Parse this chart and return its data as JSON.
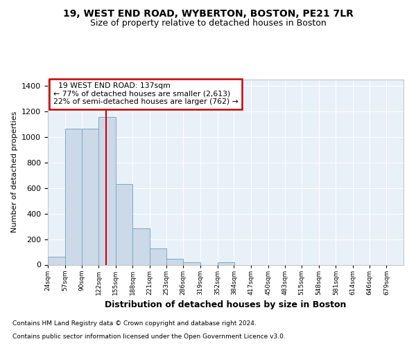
{
  "title1": "19, WEST END ROAD, WYBERTON, BOSTON, PE21 7LR",
  "title2": "Size of property relative to detached houses in Boston",
  "xlabel": "Distribution of detached houses by size in Boston",
  "ylabel": "Number of detached properties",
  "footer1": "Contains HM Land Registry data © Crown copyright and database right 2024.",
  "footer2": "Contains public sector information licensed under the Open Government Licence v3.0.",
  "annotation_line1": "19 WEST END ROAD: 137sqm",
  "annotation_line2": "← 77% of detached houses are smaller (2,613)",
  "annotation_line3": "22% of semi-detached houses are larger (762) →",
  "bin_edges": [
    24,
    57,
    90,
    122,
    155,
    188,
    221,
    253,
    286,
    319,
    352,
    384,
    417,
    450,
    483,
    515,
    548,
    581,
    614,
    646,
    679
  ],
  "bar_heights": [
    65,
    1065,
    1065,
    1155,
    630,
    285,
    130,
    48,
    20,
    0,
    20,
    0,
    0,
    0,
    0,
    0,
    0,
    0,
    0,
    0
  ],
  "bar_color": "#ccd9e8",
  "bar_edge_color": "#7aaac8",
  "vline_x": 137,
  "vline_color": "#cc0000",
  "annotation_box_facecolor": "#ffffff",
  "annotation_box_edgecolor": "#cc0000",
  "ylim": [
    0,
    1450
  ],
  "yticks": [
    0,
    200,
    400,
    600,
    800,
    1000,
    1200,
    1400
  ],
  "background_color": "#ffffff",
  "plot_background": "#e8f0f8"
}
